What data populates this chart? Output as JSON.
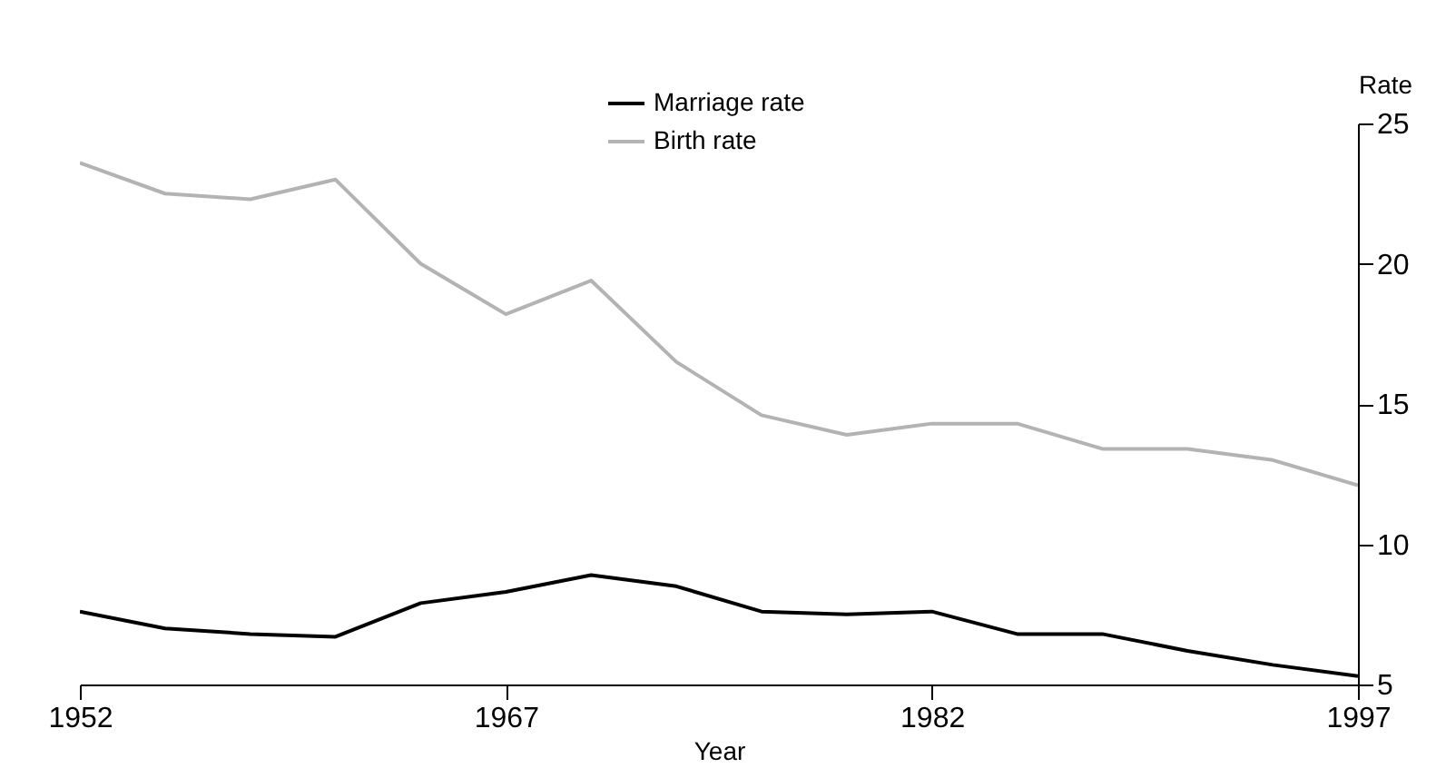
{
  "chart_data": {
    "type": "line",
    "xlabel": "Year",
    "ylabel": "Rate",
    "x": [
      1952,
      1955,
      1958,
      1961,
      1964,
      1967,
      1970,
      1973,
      1976,
      1979,
      1982,
      1985,
      1988,
      1991,
      1994,
      1997
    ],
    "series": [
      {
        "name": "Marriage rate",
        "color": "#000000",
        "values": [
          7.6,
          7.0,
          6.8,
          6.7,
          7.9,
          8.3,
          8.9,
          8.5,
          7.6,
          7.5,
          7.6,
          6.8,
          6.8,
          6.2,
          5.7,
          5.3
        ]
      },
      {
        "name": "Birth rate",
        "color": "#b3b3b3",
        "values": [
          23.6,
          22.5,
          22.3,
          23.0,
          20.0,
          18.2,
          19.4,
          16.5,
          14.6,
          13.9,
          14.3,
          14.3,
          13.4,
          13.4,
          13.0,
          12.1
        ]
      }
    ],
    "xlim": [
      1952,
      1997
    ],
    "xticks": [
      1952,
      1967,
      1982,
      1997
    ],
    "ylim": [
      5,
      25
    ],
    "yticks": [
      5,
      10,
      15,
      20,
      25
    ],
    "grid": false,
    "legend": "top",
    "marker": "none",
    "line_style": "solid"
  }
}
